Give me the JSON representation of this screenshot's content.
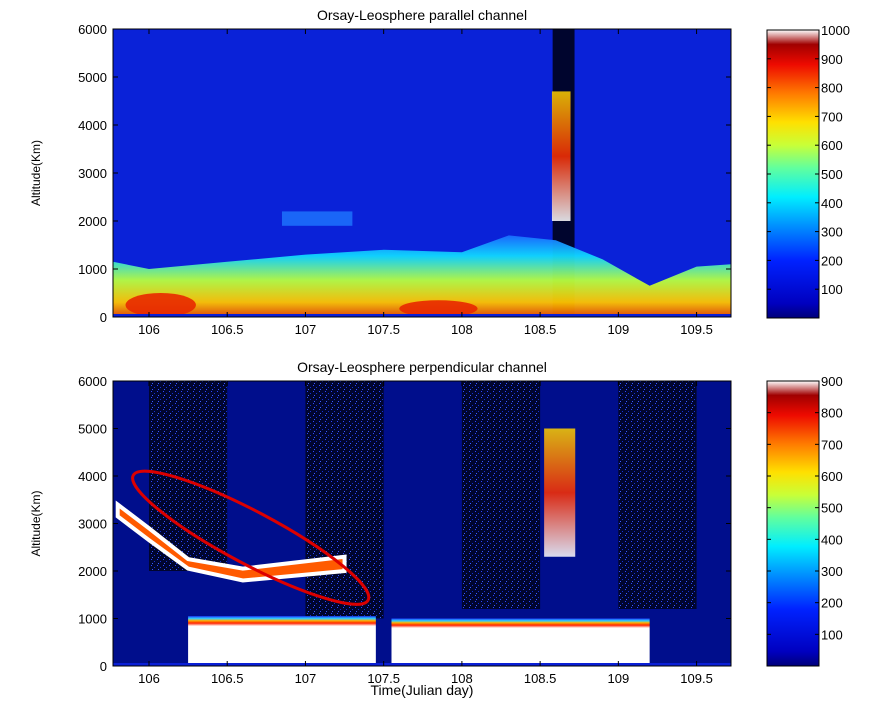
{
  "chart_data": [
    {
      "type": "heatmap",
      "title": "Orsay-Leosphere parallel channel",
      "xlabel": "",
      "ylabel": "Altitude(Km)",
      "xlim": [
        105.77,
        109.72
      ],
      "ylim": [
        0,
        6000
      ],
      "x_ticks": [
        106,
        106.5,
        107,
        107.5,
        108,
        108.5,
        109,
        109.5
      ],
      "x_tick_labels": [
        "106",
        "106.5",
        "107",
        "107.5",
        "108",
        "108.5",
        "109",
        "109.5"
      ],
      "y_ticks": [
        0,
        1000,
        2000,
        3000,
        4000,
        5000,
        6000
      ],
      "y_tick_labels": [
        "0",
        "1000",
        "2000",
        "3000",
        "4000",
        "5000",
        "6000"
      ],
      "colorbar": {
        "range": [
          0,
          1000
        ],
        "ticks": [
          100,
          200,
          300,
          400,
          500,
          600,
          700,
          800,
          900,
          1000
        ],
        "tick_labels": [
          "100",
          "200",
          "300",
          "400",
          "500",
          "600",
          "700",
          "800",
          "900",
          "1000"
        ]
      },
      "features": [
        {
          "kind": "boundary_layer_top",
          "x": [
            105.77,
            106.0,
            106.5,
            107.0,
            107.5,
            108.0,
            108.3,
            108.6,
            108.9,
            109.2,
            109.5,
            109.72
          ],
          "y": [
            1150,
            1000,
            1150,
            1300,
            1400,
            1350,
            1700,
            1600,
            1200,
            650,
            1050,
            1100
          ]
        },
        {
          "kind": "high_value_region",
          "x": [
            105.85,
            106.3
          ],
          "y": [
            0,
            500
          ],
          "value": 800
        },
        {
          "kind": "high_value_region",
          "x": [
            107.6,
            108.1
          ],
          "y": [
            0,
            350
          ],
          "value": 800
        },
        {
          "kind": "elevated_layer",
          "x": [
            106.85,
            107.3
          ],
          "y": [
            1900,
            2200
          ],
          "value": 250
        },
        {
          "kind": "plume",
          "x": [
            108.55,
            108.72
          ],
          "y": [
            2000,
            4700
          ],
          "value": 600
        },
        {
          "kind": "no_data_gap",
          "x": [
            108.58,
            108.72
          ],
          "y": [
            0,
            6000
          ]
        }
      ]
    },
    {
      "type": "heatmap",
      "title": "Orsay-Leosphere perpendicular channel",
      "xlabel": "Time(Julian day)",
      "ylabel": "Altitude(Km)",
      "xlim": [
        105.77,
        109.72
      ],
      "ylim": [
        0,
        6000
      ],
      "x_ticks": [
        106,
        106.5,
        107,
        107.5,
        108,
        108.5,
        109,
        109.5
      ],
      "x_tick_labels": [
        "106",
        "106.5",
        "107",
        "107.5",
        "108",
        "108.5",
        "109",
        "109.5"
      ],
      "y_ticks": [
        0,
        1000,
        2000,
        3000,
        4000,
        5000,
        6000
      ],
      "y_tick_labels": [
        "0",
        "1000",
        "2000",
        "3000",
        "4000",
        "5000",
        "6000"
      ],
      "colorbar": {
        "range": [
          0,
          900
        ],
        "ticks": [
          100,
          200,
          300,
          400,
          500,
          600,
          700,
          800,
          900
        ],
        "tick_labels": [
          "100",
          "200",
          "300",
          "400",
          "500",
          "600",
          "700",
          "800",
          "900"
        ]
      },
      "features": [
        {
          "kind": "saturated_boundary_layer",
          "x": [
            106.25,
            107.45
          ],
          "y": [
            0,
            1050
          ],
          "value": 900
        },
        {
          "kind": "saturated_boundary_layer",
          "x": [
            107.55,
            109.2
          ],
          "y": [
            0,
            1000
          ],
          "value": 900
        },
        {
          "kind": "elevated_layer",
          "x": [
            105.8,
            107.25
          ],
          "y": [
            1800,
            3400
          ],
          "value": 800
        },
        {
          "kind": "plume",
          "x": [
            108.5,
            108.75
          ],
          "y": [
            2300,
            5000
          ],
          "value": 700
        },
        {
          "kind": "night_noise_band",
          "x": [
            106.0,
            106.5
          ],
          "y": [
            2000,
            6000
          ]
        },
        {
          "kind": "night_noise_band",
          "x": [
            107.0,
            107.5
          ],
          "y": [
            1000,
            6000
          ]
        },
        {
          "kind": "night_noise_band",
          "x": [
            108.0,
            108.5
          ],
          "y": [
            1200,
            6000
          ]
        },
        {
          "kind": "night_noise_band",
          "x": [
            109.0,
            109.5
          ],
          "y": [
            1200,
            6000
          ]
        }
      ],
      "annotation": {
        "shape": "ellipse",
        "color": "#dc0000",
        "center": [
          106.65,
          2700
        ],
        "x_extent": [
          105.8,
          107.5
        ],
        "y_extent": [
          1500,
          3950
        ]
      }
    }
  ],
  "colors": {
    "background": "#000e8c",
    "low": "#0a1fd6",
    "annotation": "#dc0000"
  }
}
